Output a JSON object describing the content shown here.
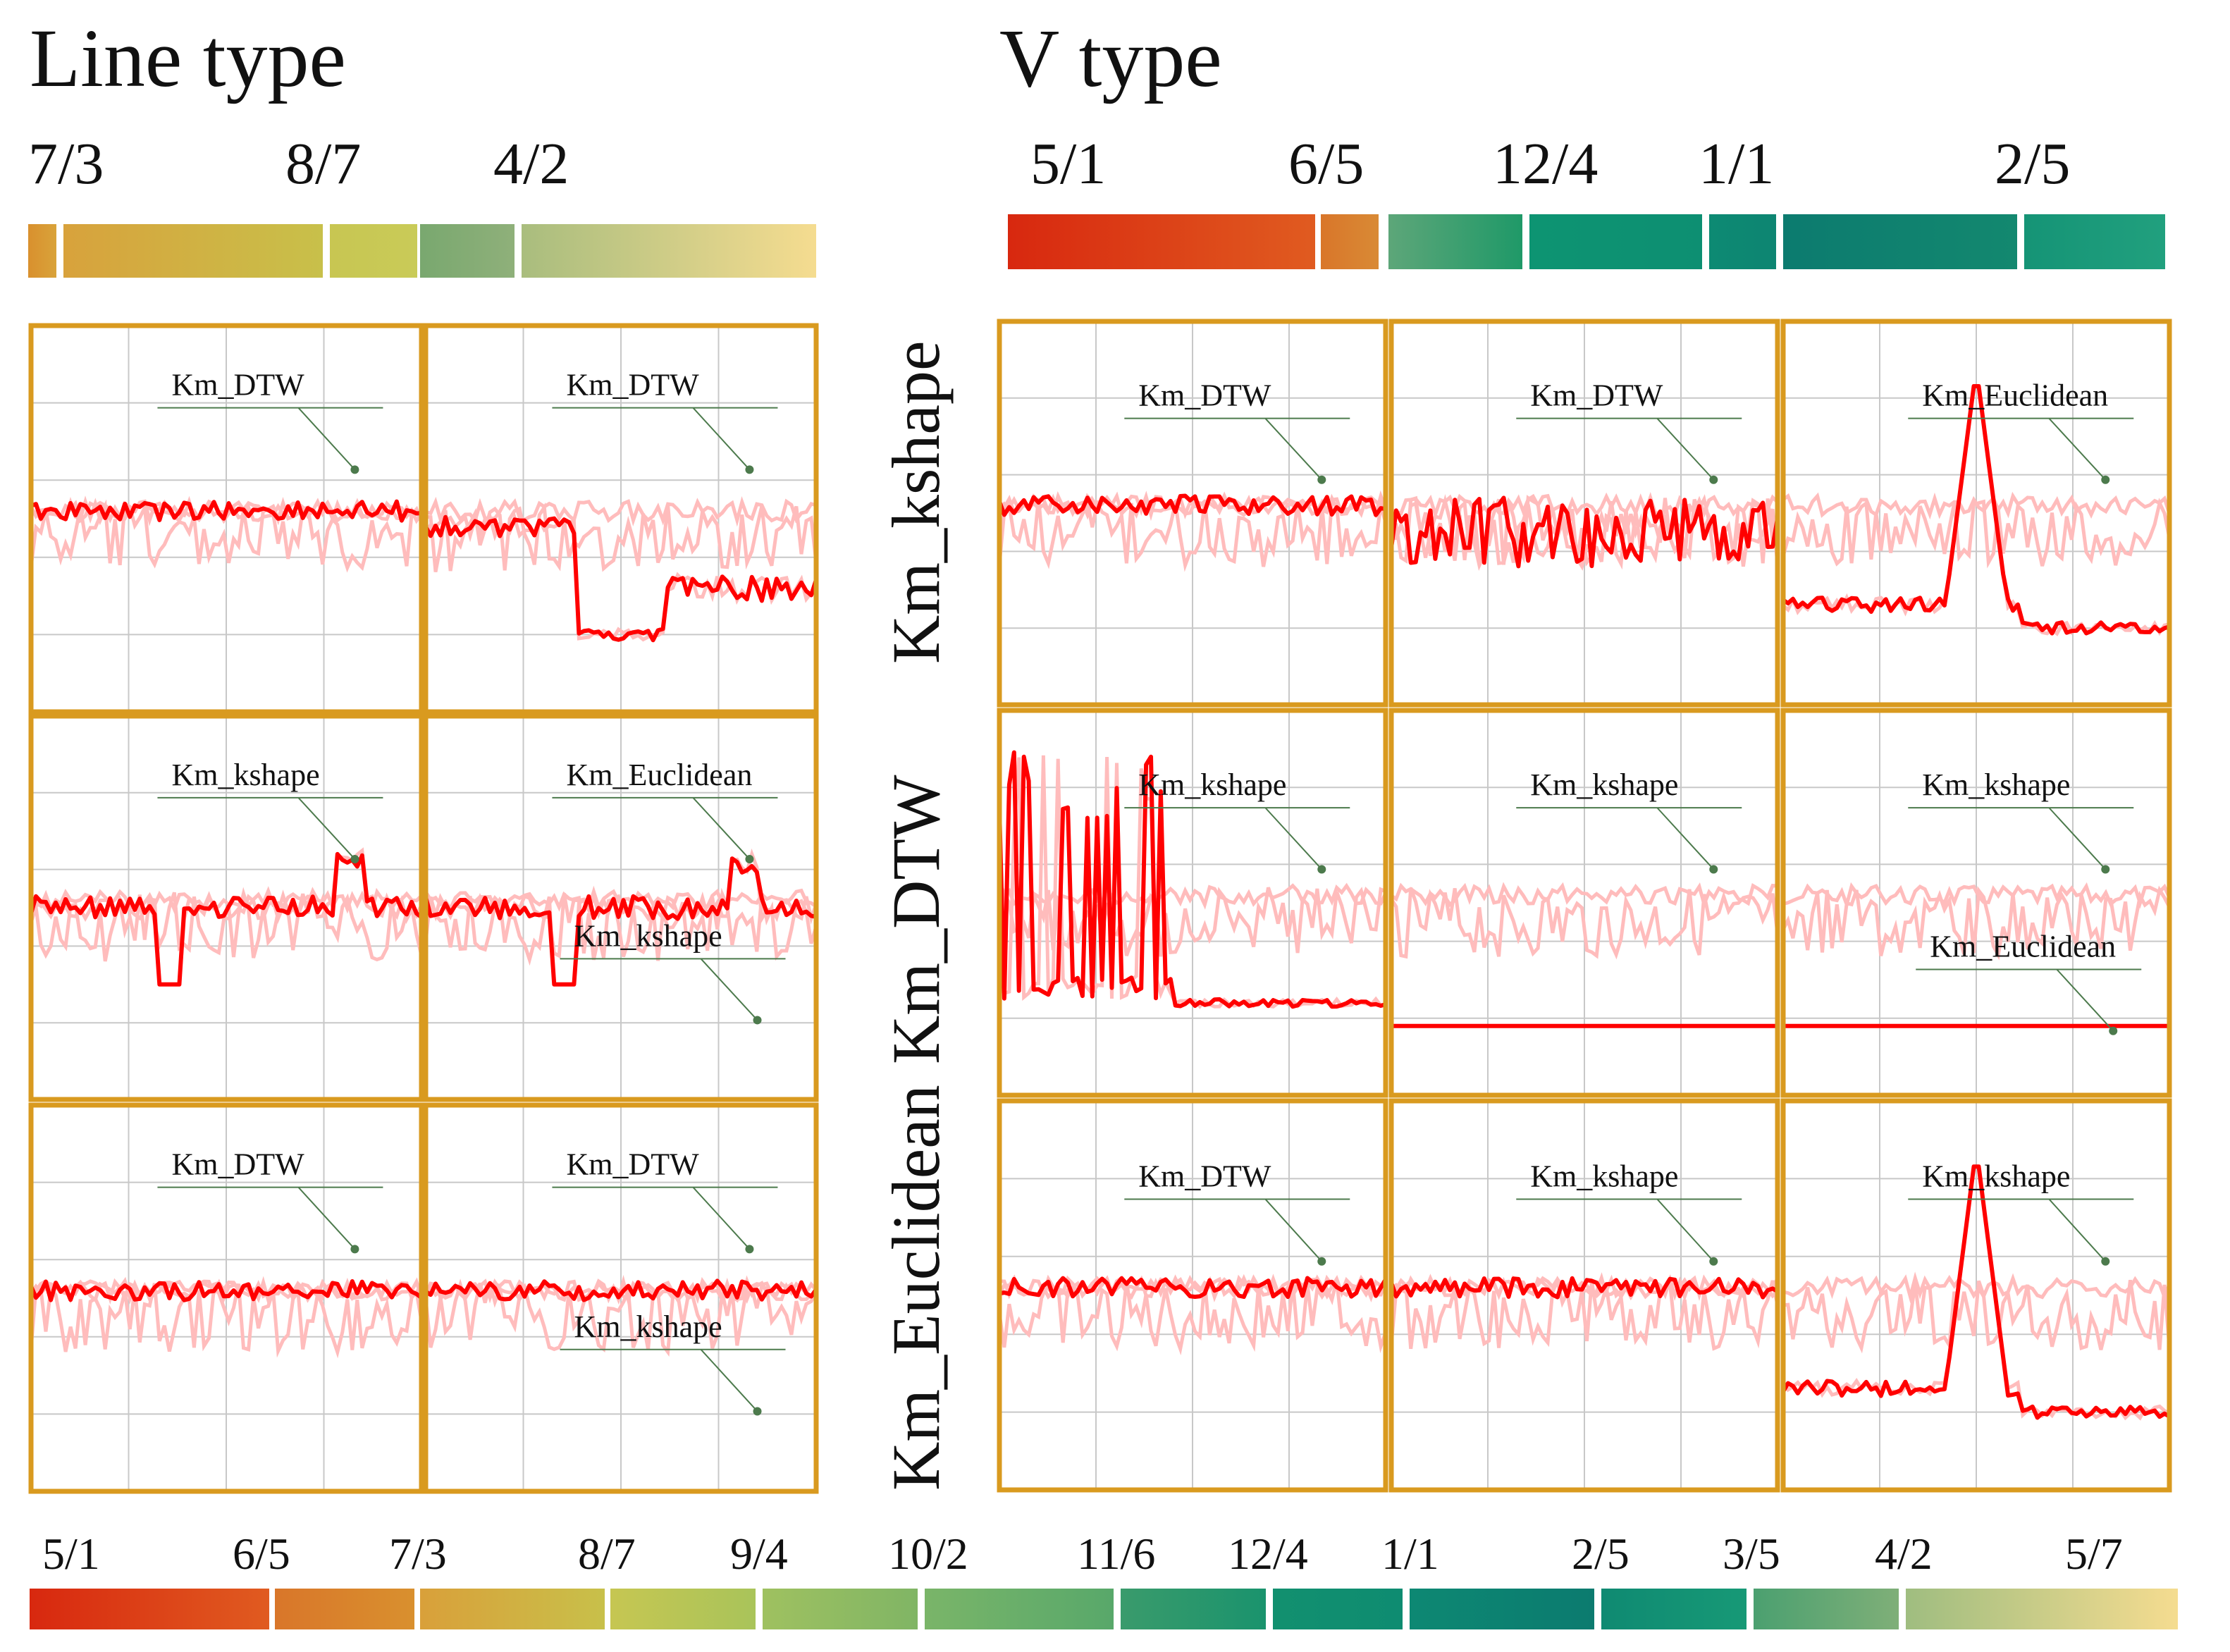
{
  "chart_data": {
    "type": "line",
    "sections": [
      {
        "title": "Line type",
        "ticks": [
          "7/3",
          "8/7",
          "4/2"
        ]
      },
      {
        "title": "V type",
        "ticks": [
          "5/1",
          "6/5",
          "12/4",
          "1/1",
          "2/5"
        ]
      }
    ],
    "row_labels": [
      "Km_kshape",
      "Km_DTW",
      "Km_Euclidean"
    ],
    "bottom_ticks": [
      "5/1",
      "6/5",
      "7/3",
      "8/7",
      "9/4",
      "10/2",
      "11/6",
      "12/4",
      "1/1",
      "2/5",
      "3/5",
      "4/2",
      "5/7"
    ],
    "annotations": {
      "line": [
        [
          [
            "Km_DTW"
          ],
          [
            "Km_DTW"
          ]
        ],
        [
          [
            "Km_kshape"
          ],
          [
            "Km_Euclidean",
            "Km_kshape"
          ]
        ],
        [
          [
            "Km_DTW"
          ],
          [
            "Km_DTW",
            "Km_kshape"
          ]
        ]
      ],
      "v": [
        [
          [
            "Km_DTW"
          ],
          [
            "Km_DTW"
          ],
          [
            "Km_Euclidean"
          ]
        ],
        [
          [
            "Km_kshape"
          ],
          [
            "Km_kshape"
          ],
          [
            "Km_kshape",
            "Km_Euclidean"
          ]
        ],
        [
          [
            "Km_DTW"
          ],
          [
            "Km_kshape"
          ],
          [
            "Km_kshape"
          ]
        ]
      ]
    },
    "palette": {
      "red": "#ff0000",
      "faint": "#ffbcbc",
      "frame": "#d99a1f",
      "leader": "#4c7a4c",
      "grid": "#c8c8c8"
    }
  }
}
